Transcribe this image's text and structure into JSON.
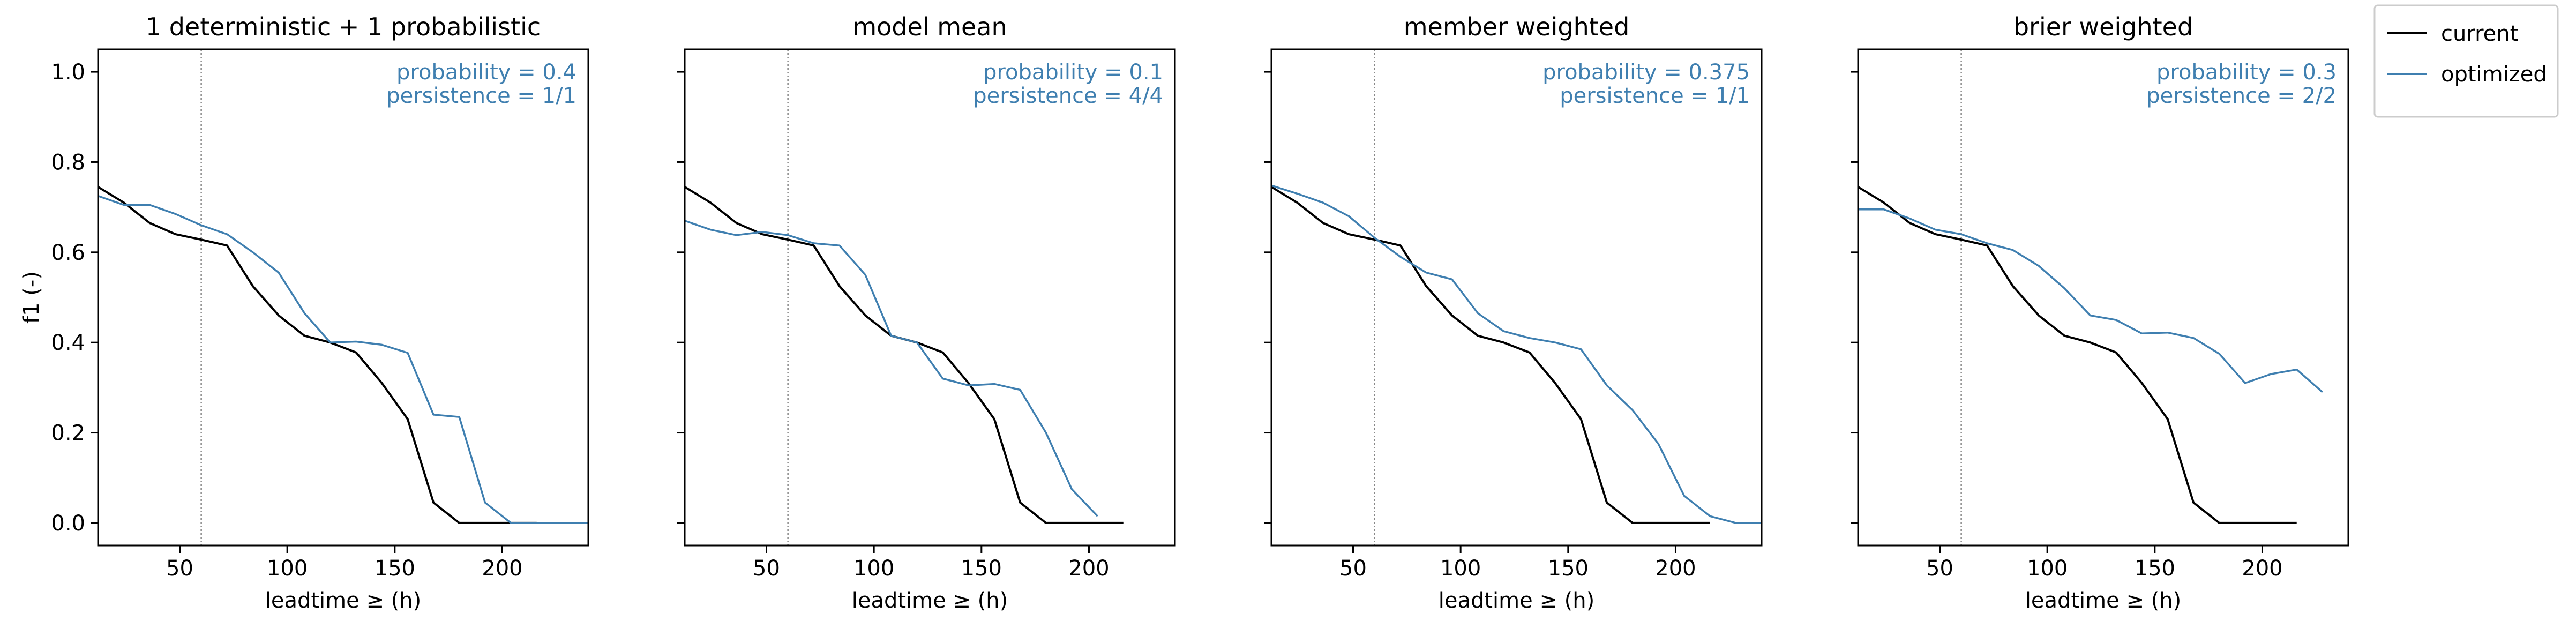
{
  "figure": {
    "legend": {
      "placement": "outside-right-top"
    }
  },
  "chart_data": [
    {
      "type": "line",
      "title": "1 deterministic + 1 probabilistic",
      "xlabel": "leadtime ≥ (h)",
      "ylabel": "f1 (-)",
      "xlim": [
        12,
        240
      ],
      "ylim": [
        -0.05,
        1.05
      ],
      "xticks": [
        50,
        100,
        150,
        200
      ],
      "yticks": [
        0.0,
        0.2,
        0.4,
        0.6,
        0.8,
        1.0
      ],
      "vline": 60,
      "annotations": [
        "probability = 0.4",
        "persistence = 1/1"
      ],
      "series": [
        {
          "name": "current",
          "color": "#000000",
          "x": [
            12,
            24,
            36,
            48,
            60,
            72,
            84,
            96,
            108,
            120,
            132,
            144,
            156,
            168,
            180,
            192,
            204,
            216
          ],
          "y": [
            0.745,
            0.71,
            0.665,
            0.64,
            0.628,
            0.615,
            0.525,
            0.46,
            0.415,
            0.4,
            0.378,
            0.31,
            0.23,
            0.045,
            0.0,
            0.0,
            0.0,
            0.0
          ]
        },
        {
          "name": "optimized",
          "color": "#3f7fb0",
          "x": [
            12,
            24,
            36,
            48,
            60,
            72,
            84,
            96,
            108,
            120,
            132,
            144,
            156,
            168,
            180,
            192,
            204,
            216,
            228,
            240
          ],
          "y": [
            0.725,
            0.705,
            0.705,
            0.685,
            0.66,
            0.64,
            0.6,
            0.555,
            0.465,
            0.4,
            0.402,
            0.395,
            0.377,
            0.24,
            0.235,
            0.045,
            0.0,
            0.0,
            0.0,
            0.0
          ]
        }
      ]
    },
    {
      "type": "line",
      "title": "model mean",
      "xlabel": "leadtime ≥ (h)",
      "ylabel": "",
      "xlim": [
        12,
        240
      ],
      "ylim": [
        -0.05,
        1.05
      ],
      "xticks": [
        50,
        100,
        150,
        200
      ],
      "yticks": [
        0.0,
        0.2,
        0.4,
        0.6,
        0.8,
        1.0
      ],
      "vline": 60,
      "annotations": [
        "probability = 0.1",
        "persistence = 4/4"
      ],
      "series": [
        {
          "name": "current",
          "color": "#000000",
          "x": [
            12,
            24,
            36,
            48,
            60,
            72,
            84,
            96,
            108,
            120,
            132,
            144,
            156,
            168,
            180,
            192,
            204,
            216
          ],
          "y": [
            0.745,
            0.71,
            0.665,
            0.64,
            0.628,
            0.615,
            0.525,
            0.46,
            0.415,
            0.4,
            0.378,
            0.31,
            0.23,
            0.045,
            0.0,
            0.0,
            0.0,
            0.0
          ]
        },
        {
          "name": "optimized",
          "color": "#3f7fb0",
          "x": [
            12,
            24,
            36,
            48,
            60,
            72,
            84,
            96,
            108,
            120,
            132,
            144,
            156,
            168,
            180,
            192,
            204
          ],
          "y": [
            0.67,
            0.65,
            0.638,
            0.645,
            0.638,
            0.62,
            0.615,
            0.55,
            0.415,
            0.4,
            0.32,
            0.305,
            0.308,
            0.295,
            0.2,
            0.075,
            0.015
          ]
        }
      ]
    },
    {
      "type": "line",
      "title": "member weighted",
      "xlabel": "leadtime ≥ (h)",
      "ylabel": "",
      "xlim": [
        12,
        240
      ],
      "ylim": [
        -0.05,
        1.05
      ],
      "xticks": [
        50,
        100,
        150,
        200
      ],
      "yticks": [
        0.0,
        0.2,
        0.4,
        0.6,
        0.8,
        1.0
      ],
      "vline": 60,
      "annotations": [
        "probability = 0.375",
        "persistence = 1/1"
      ],
      "series": [
        {
          "name": "current",
          "color": "#000000",
          "x": [
            12,
            24,
            36,
            48,
            60,
            72,
            84,
            96,
            108,
            120,
            132,
            144,
            156,
            168,
            180,
            192,
            204,
            216
          ],
          "y": [
            0.745,
            0.71,
            0.665,
            0.64,
            0.628,
            0.615,
            0.525,
            0.46,
            0.415,
            0.4,
            0.378,
            0.31,
            0.23,
            0.045,
            0.0,
            0.0,
            0.0,
            0.0
          ]
        },
        {
          "name": "optimized",
          "color": "#3f7fb0",
          "x": [
            12,
            24,
            36,
            48,
            60,
            72,
            84,
            96,
            108,
            120,
            132,
            144,
            156,
            168,
            180,
            192,
            204,
            216,
            228,
            240
          ],
          "y": [
            0.748,
            0.73,
            0.71,
            0.68,
            0.632,
            0.59,
            0.555,
            0.54,
            0.465,
            0.425,
            0.41,
            0.4,
            0.385,
            0.305,
            0.25,
            0.175,
            0.06,
            0.015,
            0.0,
            0.0
          ]
        }
      ]
    },
    {
      "type": "line",
      "title": "brier weighted",
      "xlabel": "leadtime ≥ (h)",
      "ylabel": "",
      "xlim": [
        12,
        240
      ],
      "ylim": [
        -0.05,
        1.05
      ],
      "xticks": [
        50,
        100,
        150,
        200
      ],
      "yticks": [
        0.0,
        0.2,
        0.4,
        0.6,
        0.8,
        1.0
      ],
      "vline": 60,
      "annotations": [
        "probability = 0.3",
        "persistence = 2/2"
      ],
      "series": [
        {
          "name": "current",
          "color": "#000000",
          "x": [
            12,
            24,
            36,
            48,
            60,
            72,
            84,
            96,
            108,
            120,
            132,
            144,
            156,
            168,
            180,
            192,
            204,
            216
          ],
          "y": [
            0.745,
            0.71,
            0.665,
            0.64,
            0.628,
            0.615,
            0.525,
            0.46,
            0.415,
            0.4,
            0.378,
            0.31,
            0.23,
            0.045,
            0.0,
            0.0,
            0.0,
            0.0
          ]
        },
        {
          "name": "optimized",
          "color": "#3f7fb0",
          "x": [
            12,
            24,
            36,
            48,
            60,
            72,
            84,
            96,
            108,
            120,
            132,
            144,
            156,
            168,
            180,
            192,
            204,
            216,
            228
          ],
          "y": [
            0.695,
            0.695,
            0.675,
            0.65,
            0.64,
            0.62,
            0.605,
            0.57,
            0.52,
            0.46,
            0.45,
            0.42,
            0.422,
            0.41,
            0.375,
            0.31,
            0.33,
            0.34,
            0.29
          ]
        }
      ]
    }
  ]
}
